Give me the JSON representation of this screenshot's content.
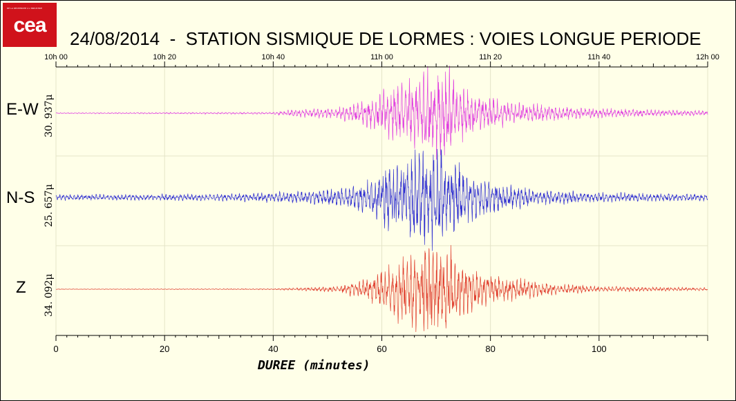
{
  "logo": {
    "text": "cea",
    "tagline": "DE LA RECHERCHE À L'INDUSTRIE",
    "color": "#d0121b"
  },
  "title": "24/08/2014  -  STATION SISMIQUE DE LORMES : VOIES LONGUE PERIODE",
  "chart_data": {
    "type": "line",
    "title": "24/08/2014  -  STATION SISMIQUE DE LORMES : VOIES LONGUE PERIODE",
    "xlabel": "DUREE (minutes)",
    "xlim": [
      0,
      120
    ],
    "x_ticks_major": [
      0,
      20,
      40,
      60,
      80,
      100
    ],
    "x_ticks_top": [
      "10h 00",
      "10h 20",
      "10h 40",
      "11h 00",
      "11h 20",
      "11h 40",
      "12h 00"
    ],
    "grid": true,
    "channels": [
      {
        "name": "E-W",
        "scale": "30. 937μ",
        "color": "#e040e0",
        "envelope": [
          [
            0,
            0.01
          ],
          [
            40,
            0.02
          ],
          [
            44,
            0.08
          ],
          [
            52,
            0.12
          ],
          [
            58,
            0.3
          ],
          [
            62,
            0.55
          ],
          [
            66,
            0.75
          ],
          [
            70,
            1.0
          ],
          [
            72,
            0.95
          ],
          [
            74,
            0.6
          ],
          [
            78,
            0.35
          ],
          [
            85,
            0.22
          ],
          [
            92,
            0.15
          ],
          [
            100,
            0.1
          ],
          [
            110,
            0.07
          ],
          [
            120,
            0.05
          ]
        ]
      },
      {
        "name": "N-S",
        "scale": "25. 657μ",
        "color": "#3030d0",
        "envelope": [
          [
            0,
            0.06
          ],
          [
            30,
            0.07
          ],
          [
            40,
            0.1
          ],
          [
            44,
            0.12
          ],
          [
            52,
            0.18
          ],
          [
            58,
            0.35
          ],
          [
            62,
            0.75
          ],
          [
            66,
            0.95
          ],
          [
            70,
            1.0
          ],
          [
            73,
            0.85
          ],
          [
            76,
            0.5
          ],
          [
            82,
            0.3
          ],
          [
            90,
            0.15
          ],
          [
            100,
            0.1
          ],
          [
            120,
            0.07
          ]
        ]
      },
      {
        "name": "Z",
        "scale": "34. 092μ",
        "color": "#e04030",
        "envelope": [
          [
            0,
            0.005
          ],
          [
            40,
            0.01
          ],
          [
            45,
            0.03
          ],
          [
            52,
            0.06
          ],
          [
            58,
            0.25
          ],
          [
            62,
            0.55
          ],
          [
            66,
            0.85
          ],
          [
            69,
            1.0
          ],
          [
            72,
            0.9
          ],
          [
            75,
            0.55
          ],
          [
            80,
            0.3
          ],
          [
            86,
            0.2
          ],
          [
            92,
            0.12
          ],
          [
            100,
            0.06
          ],
          [
            110,
            0.04
          ],
          [
            120,
            0.03
          ]
        ]
      }
    ]
  }
}
